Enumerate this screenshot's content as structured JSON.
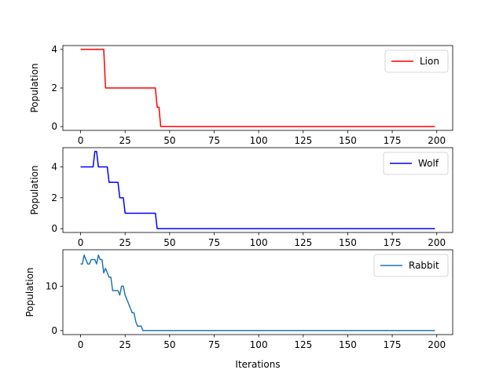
{
  "chart_data": [
    {
      "type": "line",
      "ylabel": "Population",
      "xlabel": "",
      "xlim": [
        -9.95,
        208.95
      ],
      "ylim": [
        -0.2,
        4.2
      ],
      "xticks": [
        0,
        25,
        50,
        75,
        100,
        125,
        150,
        175,
        200
      ],
      "yticks": [
        0,
        2,
        4
      ],
      "legend": "top-right",
      "grid": false,
      "series": [
        {
          "name": "Lion",
          "color": "#ff0000",
          "points": [
            [
              0,
              4
            ],
            [
              13,
              4
            ],
            [
              14,
              2
            ],
            [
              42,
              2
            ],
            [
              43,
              1
            ],
            [
              44,
              1
            ],
            [
              45,
              0
            ],
            [
              199,
              0
            ]
          ]
        }
      ]
    },
    {
      "type": "line",
      "ylabel": "Population",
      "xlabel": "",
      "xlim": [
        -9.95,
        208.95
      ],
      "ylim": [
        -0.25,
        5.25
      ],
      "xticks": [
        0,
        25,
        50,
        75,
        100,
        125,
        150,
        175,
        200
      ],
      "yticks": [
        0,
        2,
        4
      ],
      "legend": "top-right",
      "grid": false,
      "series": [
        {
          "name": "Wolf",
          "color": "#0000ff",
          "points": [
            [
              0,
              4
            ],
            [
              7,
              4
            ],
            [
              8,
              5
            ],
            [
              9,
              5
            ],
            [
              10,
              4
            ],
            [
              15,
              4
            ],
            [
              16,
              3
            ],
            [
              21,
              3
            ],
            [
              22,
              2
            ],
            [
              24,
              2
            ],
            [
              25,
              1
            ],
            [
              42,
              1
            ],
            [
              43,
              0
            ],
            [
              199,
              0
            ]
          ]
        }
      ]
    },
    {
      "type": "line",
      "ylabel": "Population",
      "xlabel": "Iterations",
      "xlim": [
        -9.95,
        208.95
      ],
      "ylim": [
        -0.9,
        18.2
      ],
      "xticks": [
        0,
        25,
        50,
        75,
        100,
        125,
        150,
        175,
        200
      ],
      "yticks": [
        0,
        10
      ],
      "legend": "top-right",
      "grid": false,
      "series": [
        {
          "name": "Rabbit",
          "color": "#1f77b4",
          "points": [
            [
              0,
              15
            ],
            [
              1,
              15
            ],
            [
              2,
              17
            ],
            [
              3,
              16
            ],
            [
              4,
              15
            ],
            [
              5,
              15
            ],
            [
              6,
              16
            ],
            [
              7,
              16
            ],
            [
              8,
              16
            ],
            [
              9,
              15
            ],
            [
              10,
              17
            ],
            [
              11,
              16
            ],
            [
              12,
              16
            ],
            [
              13,
              13
            ],
            [
              14,
              14
            ],
            [
              15,
              13
            ],
            [
              16,
              12
            ],
            [
              17,
              12
            ],
            [
              18,
              9
            ],
            [
              19,
              9
            ],
            [
              20,
              9
            ],
            [
              21,
              9
            ],
            [
              22,
              8
            ],
            [
              23,
              10
            ],
            [
              24,
              10
            ],
            [
              25,
              8
            ],
            [
              26,
              7
            ],
            [
              27,
              6
            ],
            [
              28,
              5
            ],
            [
              29,
              4
            ],
            [
              30,
              4
            ],
            [
              31,
              2
            ],
            [
              32,
              1
            ],
            [
              33,
              1
            ],
            [
              34,
              1
            ],
            [
              35,
              0
            ],
            [
              199,
              0
            ]
          ]
        }
      ]
    }
  ]
}
